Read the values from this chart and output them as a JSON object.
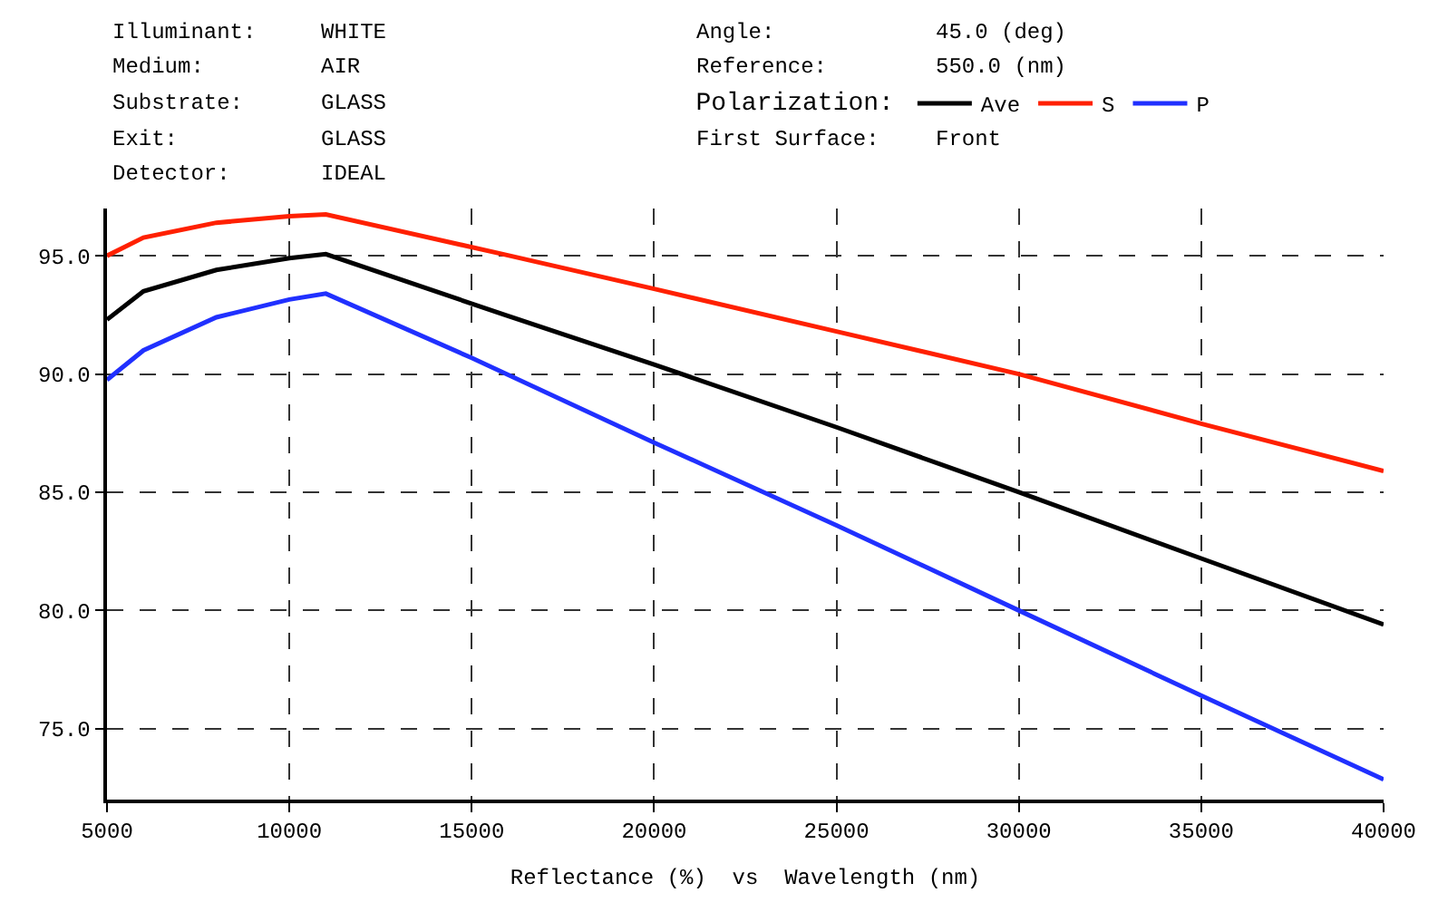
{
  "chart_data": {
    "type": "line",
    "xlabel": "Reflectance (%)  vs  Wavelength (nm)",
    "annotations": [
      "Illuminant:",
      "WHITE",
      "Medium:",
      "AIR",
      "Substrate:",
      "GLASS",
      "Exit:",
      "GLASS",
      "Detector:",
      "IDEAL",
      "Angle:",
      "45.0 (deg)",
      "Reference:",
      "550.0 (nm)",
      "First Surface:",
      "Front"
    ],
    "legend_title": "Polarization:",
    "legend": "top",
    "series": [
      {
        "name": "Ave",
        "color": "#000000",
        "x": [
          5000,
          6000,
          8000,
          10000,
          11000,
          15910,
          20000,
          25000,
          30000,
          35000,
          40000
        ],
        "values": [
          92.3,
          93.5,
          94.4,
          94.9,
          95.07,
          92.5,
          90.4,
          87.75,
          85.0,
          82.2,
          79.4
        ]
      },
      {
        "name": "S",
        "color": "#ff2000",
        "x": [
          5000,
          6000,
          8000,
          10000,
          11000,
          15910,
          20000,
          25000,
          30000,
          35000,
          40000
        ],
        "values": [
          95.0,
          95.77,
          96.4,
          96.67,
          96.75,
          95.05,
          93.6,
          91.8,
          90.0,
          87.9,
          85.9
        ]
      },
      {
        "name": "P",
        "color": "#2030ff",
        "x": [
          5000,
          6000,
          8000,
          10000,
          11000,
          14970,
          20000,
          25000,
          30000,
          35000,
          40000
        ],
        "values": [
          89.75,
          91.0,
          92.4,
          93.15,
          93.4,
          90.7,
          87.1,
          83.6,
          80.0,
          76.4,
          72.85
        ]
      }
    ],
    "xlim": [
      5000,
      40000
    ],
    "xticks": [
      5000,
      10000,
      15000,
      20000,
      25000,
      30000,
      35000,
      40000
    ],
    "ylim": [
      72,
      97
    ],
    "yticks": [
      {
        "value": 75,
        "label": "75.0"
      },
      {
        "value": 80,
        "label": "80.0"
      },
      {
        "value": 85,
        "label": "85.0"
      },
      {
        "value": 90,
        "label": "90.0"
      },
      {
        "value": 95,
        "label": "95.0"
      }
    ],
    "grid": true,
    "line_style": "solid"
  }
}
